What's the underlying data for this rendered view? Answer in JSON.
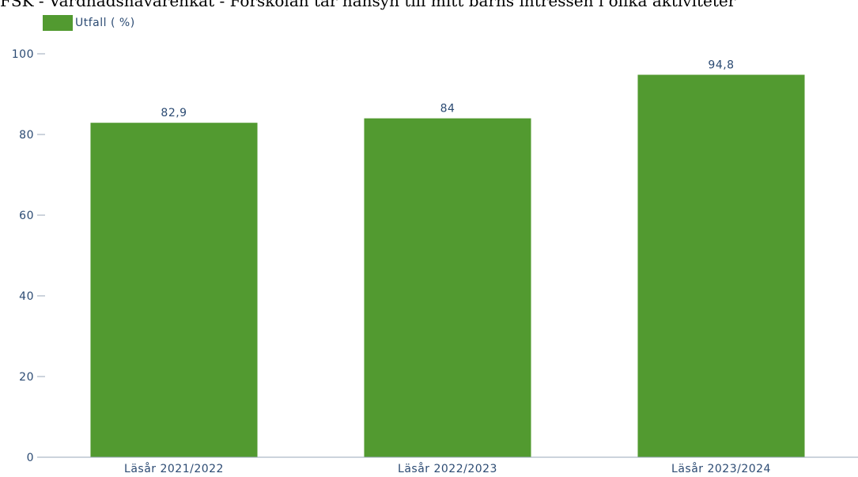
{
  "chart_data": {
    "type": "bar",
    "title": "FSK - Vårdnadshavarenkät - Förskolan tar hänsyn till mitt barns intressen i olika aktiviteter",
    "categories": [
      "Läsår 2021/2022",
      "Läsår 2022/2023",
      "Läsår 2023/2024"
    ],
    "series": [
      {
        "name": "Utfall ( %)",
        "values": [
          82.9,
          84,
          94.8
        ],
        "value_labels": [
          "82,9",
          "84",
          "94,8"
        ]
      }
    ],
    "ylim": [
      0,
      100
    ],
    "yticks": [
      0,
      20,
      40,
      60,
      80,
      100
    ],
    "grid": false,
    "legend_position": "top-left",
    "colors": {
      "bar": "#529a30",
      "text": "#2c4b73",
      "axis": "#9aa7b8"
    }
  }
}
